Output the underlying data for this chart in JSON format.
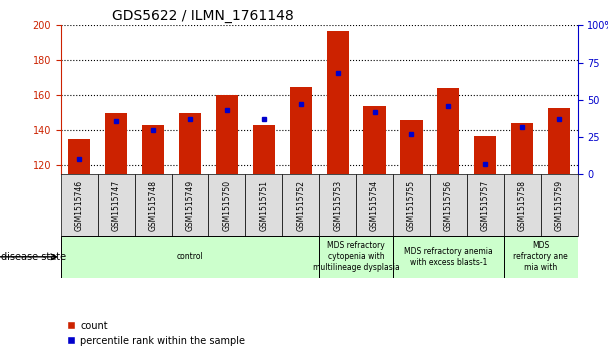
{
  "title": "GDS5622 / ILMN_1761148",
  "samples": [
    "GSM1515746",
    "GSM1515747",
    "GSM1515748",
    "GSM1515749",
    "GSM1515750",
    "GSM1515751",
    "GSM1515752",
    "GSM1515753",
    "GSM1515754",
    "GSM1515755",
    "GSM1515756",
    "GSM1515757",
    "GSM1515758",
    "GSM1515759"
  ],
  "counts": [
    135,
    150,
    143,
    150,
    160,
    143,
    165,
    197,
    154,
    146,
    164,
    137,
    144,
    153
  ],
  "percentile_ranks": [
    10,
    36,
    30,
    37,
    43,
    37,
    47,
    68,
    42,
    27,
    46,
    7,
    32,
    37
  ],
  "ylim_left": [
    115,
    200
  ],
  "ylim_right": [
    0,
    100
  ],
  "yticks_left": [
    120,
    140,
    160,
    180,
    200
  ],
  "yticks_right": [
    0,
    25,
    50,
    75,
    100
  ],
  "bar_color": "#CC2200",
  "dot_color": "#0000CC",
  "tick_color_left": "#CC2200",
  "tick_color_right": "#0000CC",
  "disease_groups": [
    {
      "label": "control",
      "start": 0,
      "end": 7
    },
    {
      "label": "MDS refractory\ncytopenia with\nmultilineage dysplasia",
      "start": 7,
      "end": 9
    },
    {
      "label": "MDS refractory anemia\nwith excess blasts-1",
      "start": 9,
      "end": 12
    },
    {
      "label": "MDS\nrefractory ane\nmia with",
      "start": 12,
      "end": 14
    }
  ],
  "group_color": "#CCFFCC",
  "sample_box_color": "#DDDDDD",
  "legend_count_color": "#CC2200",
  "legend_pct_color": "#0000CC",
  "legend_count_label": "count",
  "legend_pct_label": "percentile rank within the sample",
  "disease_state_label": "disease state"
}
